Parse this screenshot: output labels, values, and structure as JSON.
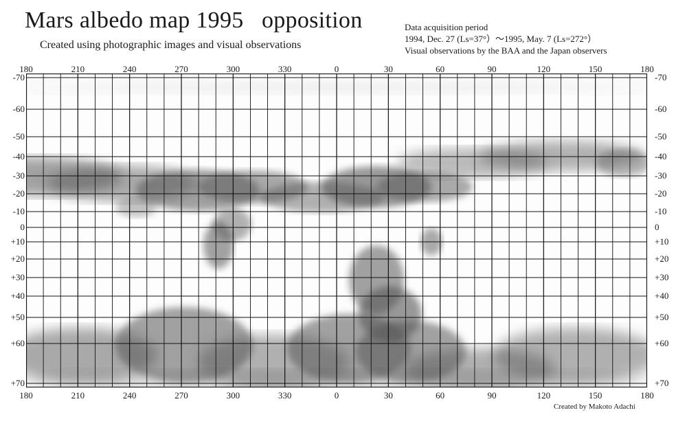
{
  "title": "Mars albedo map 1995   opposition",
  "subtitle": "Created using photographic images and visual observations",
  "info": {
    "line1": "Data acquisition period",
    "line2": "1994, Dec. 27 (Ls=37°）～1995, May. 7 (Ls=272°）",
    "line3": "Visual observations by the BAA and the Japan observers"
  },
  "credit": "Created by Makoto Adachi",
  "map": {
    "longitude_labels": [
      "180",
      "210",
      "240",
      "270",
      "300",
      "330",
      "0",
      "30",
      "60",
      "90",
      "120",
      "150",
      "180"
    ],
    "latitude_labels": [
      "-70",
      "-60",
      "-50",
      "-40",
      "-30",
      "-20",
      "-10",
      "0",
      "+10",
      "+20",
      "+30",
      "+40",
      "+50",
      "+60",
      "+70"
    ],
    "colors": {
      "background": "#ffffff",
      "grid": "#111111",
      "shading": "#555555"
    }
  }
}
